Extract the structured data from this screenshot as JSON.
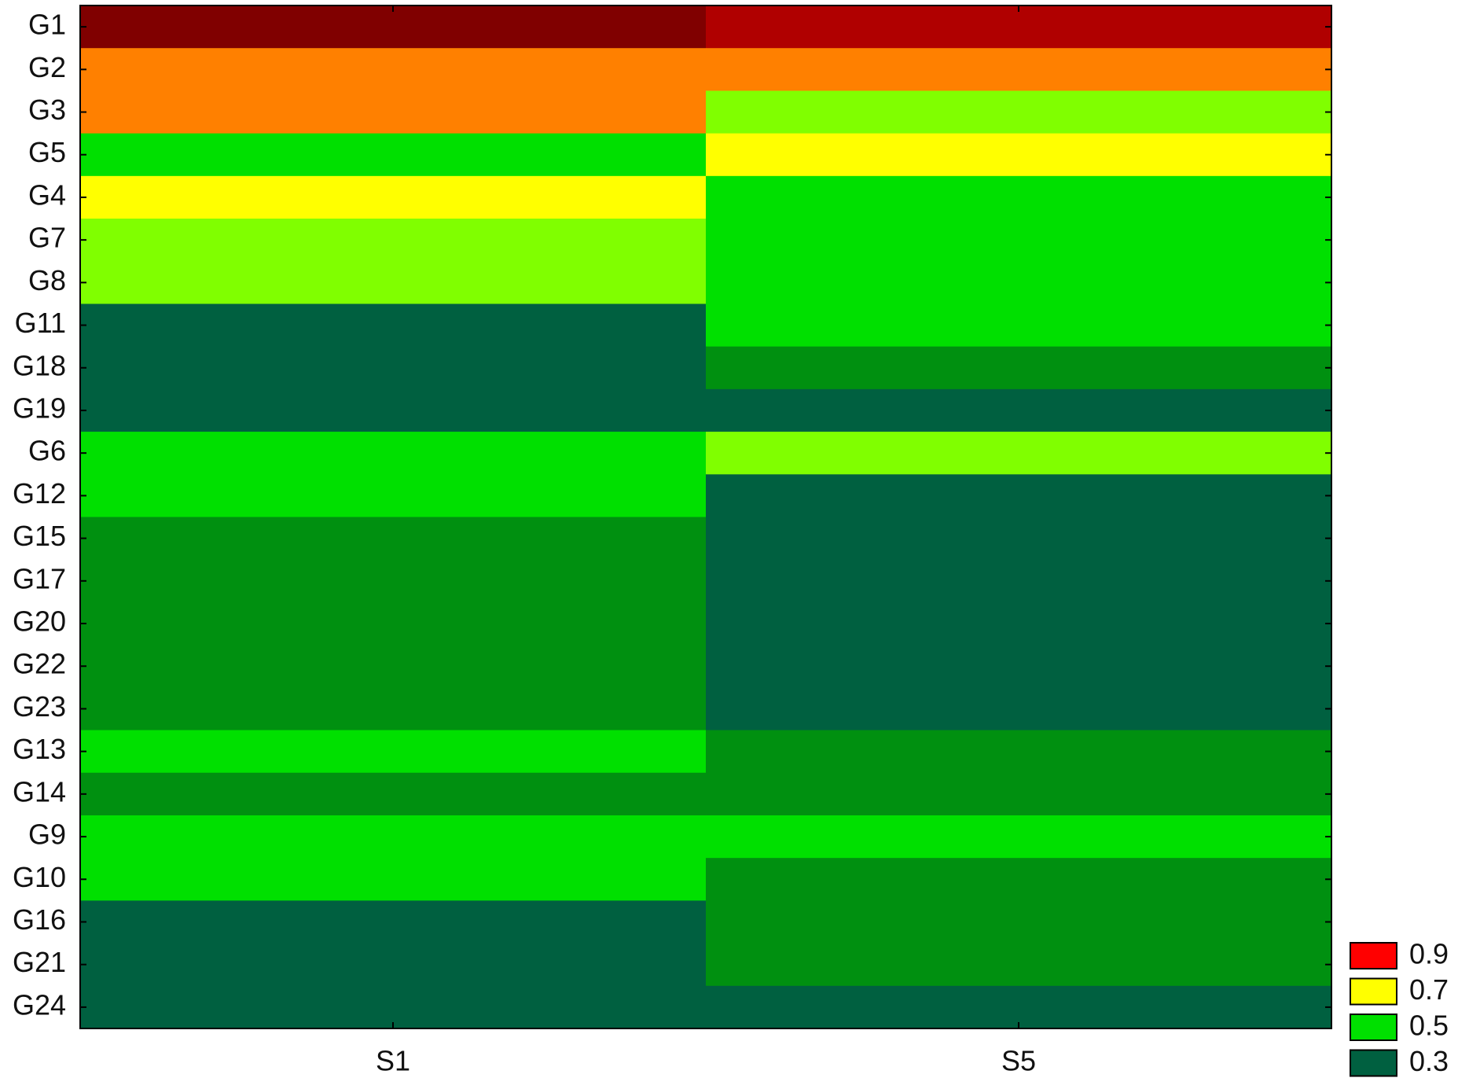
{
  "chart_data": {
    "type": "heatmap",
    "x_categories": [
      "S1",
      "S5"
    ],
    "y_categories": [
      "G1",
      "G2",
      "G3",
      "G5",
      "G4",
      "G7",
      "G8",
      "G11",
      "G18",
      "G19",
      "G6",
      "G12",
      "G15",
      "G17",
      "G20",
      "G22",
      "G23",
      "G13",
      "G14",
      "G9",
      "G10",
      "G16",
      "G21",
      "G24"
    ],
    "values": [
      [
        1.0,
        0.95
      ],
      [
        0.8,
        0.8
      ],
      [
        0.8,
        0.6
      ],
      [
        0.5,
        0.7
      ],
      [
        0.7,
        0.5
      ],
      [
        0.6,
        0.5
      ],
      [
        0.6,
        0.5
      ],
      [
        0.3,
        0.5
      ],
      [
        0.3,
        0.4
      ],
      [
        0.3,
        0.3
      ],
      [
        0.5,
        0.6
      ],
      [
        0.5,
        0.3
      ],
      [
        0.4,
        0.3
      ],
      [
        0.4,
        0.3
      ],
      [
        0.4,
        0.3
      ],
      [
        0.4,
        0.3
      ],
      [
        0.4,
        0.3
      ],
      [
        0.5,
        0.4
      ],
      [
        0.4,
        0.4
      ],
      [
        0.5,
        0.5
      ],
      [
        0.5,
        0.4
      ],
      [
        0.3,
        0.4
      ],
      [
        0.3,
        0.4
      ],
      [
        0.3,
        0.3
      ]
    ],
    "colorscale": [
      [
        0.3,
        "#006040"
      ],
      [
        0.4,
        "#009010"
      ],
      [
        0.5,
        "#00e000"
      ],
      [
        0.6,
        "#80ff00"
      ],
      [
        0.7,
        "#ffff00"
      ],
      [
        0.8,
        "#ff8000"
      ],
      [
        0.95,
        "#b00000"
      ],
      [
        1.0,
        "#800000"
      ]
    ],
    "legend": {
      "values": [
        0.9,
        0.7,
        0.5,
        0.3
      ],
      "colors": [
        "#ff0000",
        "#ffff00",
        "#00e000",
        "#006040"
      ]
    }
  }
}
